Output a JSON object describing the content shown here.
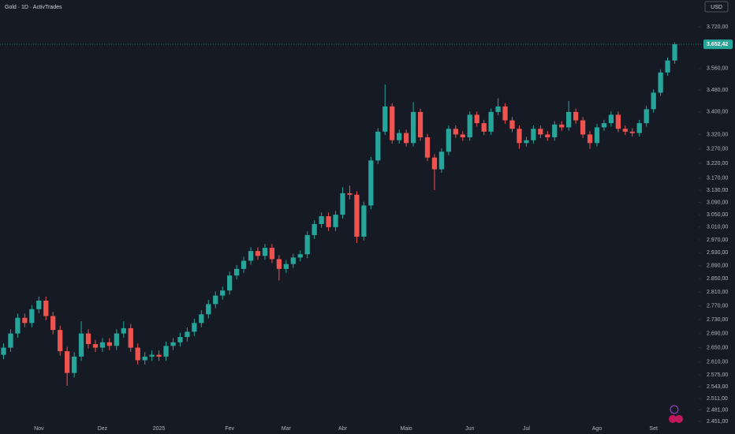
{
  "chart_data": {
    "type": "candlestick",
    "title": "Gold · 1D · ActivTrades",
    "currency": "USD",
    "categories": [
      null,
      null,
      null,
      null,
      null,
      "Nov",
      null,
      null,
      null,
      null,
      null,
      null,
      null,
      null,
      "Dez",
      null,
      null,
      null,
      null,
      null,
      null,
      null,
      "2025",
      null,
      null,
      null,
      null,
      null,
      null,
      null,
      null,
      null,
      "Fev",
      null,
      null,
      null,
      null,
      null,
      null,
      null,
      "Mar",
      null,
      null,
      null,
      null,
      null,
      null,
      null,
      "Abr",
      null,
      null,
      null,
      null,
      null,
      null,
      null,
      null,
      "Maio",
      null,
      null,
      null,
      null,
      null,
      null,
      null,
      null,
      "Jun",
      null,
      null,
      null,
      null,
      null,
      null,
      null,
      "Jul",
      null,
      null,
      null,
      null,
      null,
      null,
      null,
      null,
      null,
      "Ago",
      null,
      null,
      null,
      null,
      null,
      null,
      null,
      "Set",
      null,
      null,
      null
    ],
    "open": [
      2630,
      2650,
      2690,
      2735,
      2720,
      2760,
      2785,
      2740,
      2700,
      2640,
      2580,
      2625,
      2690,
      2660,
      2650,
      2665,
      2655,
      2690,
      2705,
      2650,
      2615,
      2625,
      2630,
      2625,
      2655,
      2665,
      2680,
      2695,
      2720,
      2745,
      2775,
      2800,
      2815,
      2860,
      2880,
      2905,
      2935,
      2920,
      2945,
      2910,
      2880,
      2895,
      2915,
      2925,
      2985,
      3020,
      3045,
      3010,
      3050,
      3120,
      3115,
      2980,
      3080,
      3230,
      3330,
      3420,
      3300,
      3325,
      3290,
      3400,
      3310,
      3240,
      3200,
      3260,
      3340,
      3320,
      3310,
      3390,
      3360,
      3330,
      3400,
      3420,
      3370,
      3340,
      3290,
      3300,
      3340,
      3320,
      3310,
      3355,
      3345,
      3400,
      3370,
      3320,
      3290,
      3345,
      3360,
      3390,
      3340,
      3330,
      3325,
      3360,
      3410,
      3470,
      3545,
      3590
    ],
    "high": [
      2662,
      2702,
      2747,
      2747,
      2772,
      2797,
      2797,
      2752,
      2712,
      2652,
      2637,
      2725,
      2702,
      2672,
      2677,
      2677,
      2702,
      2725,
      2717,
      2662,
      2637,
      2642,
      2642,
      2667,
      2677,
      2692,
      2707,
      2732,
      2757,
      2787,
      2812,
      2827,
      2872,
      2892,
      2917,
      2947,
      2947,
      2957,
      2957,
      2922,
      2907,
      2927,
      2937,
      2997,
      3032,
      3057,
      3057,
      3062,
      3140,
      3145,
      3127,
      3092,
      3242,
      3342,
      3500,
      3432,
      3337,
      3337,
      3435,
      3412,
      3322,
      3252,
      3272,
      3352,
      3352,
      3332,
      3402,
      3402,
      3372,
      3412,
      3450,
      3432,
      3382,
      3352,
      3312,
      3352,
      3352,
      3332,
      3367,
      3367,
      3440,
      3412,
      3382,
      3332,
      3357,
      3372,
      3402,
      3402,
      3352,
      3342,
      3372,
      3422,
      3482,
      3557,
      3602,
      3660
    ],
    "low": [
      2618,
      2638,
      2678,
      2708,
      2708,
      2748,
      2728,
      2688,
      2628,
      2545,
      2568,
      2613,
      2648,
      2638,
      2638,
      2643,
      2643,
      2678,
      2638,
      2603,
      2603,
      2613,
      2613,
      2613,
      2643,
      2653,
      2668,
      2683,
      2708,
      2733,
      2763,
      2788,
      2803,
      2848,
      2868,
      2893,
      2908,
      2908,
      2898,
      2845,
      2868,
      2883,
      2903,
      2913,
      2973,
      3008,
      2998,
      2998,
      3038,
      3100,
      2960,
      2968,
      3068,
      3218,
      3318,
      3288,
      3288,
      3278,
      3278,
      3298,
      3228,
      3130,
      3188,
      3248,
      3308,
      3298,
      3298,
      3348,
      3318,
      3318,
      3388,
      3358,
      3328,
      3270,
      3278,
      3288,
      3308,
      3298,
      3298,
      3333,
      3333,
      3358,
      3308,
      3270,
      3278,
      3333,
      3348,
      3328,
      3318,
      3313,
      3313,
      3348,
      3398,
      3458,
      3533,
      3578
    ],
    "close": [
      2650,
      2690,
      2735,
      2720,
      2760,
      2785,
      2740,
      2700,
      2640,
      2580,
      2625,
      2690,
      2660,
      2650,
      2665,
      2655,
      2690,
      2705,
      2650,
      2615,
      2625,
      2630,
      2625,
      2655,
      2665,
      2680,
      2695,
      2720,
      2745,
      2775,
      2800,
      2815,
      2860,
      2880,
      2905,
      2935,
      2920,
      2945,
      2910,
      2880,
      2895,
      2915,
      2925,
      2985,
      3020,
      3045,
      3010,
      3050,
      3120,
      3115,
      2980,
      3080,
      3230,
      3330,
      3420,
      3300,
      3325,
      3290,
      3400,
      3310,
      3240,
      3200,
      3260,
      3340,
      3320,
      3310,
      3390,
      3360,
      3330,
      3400,
      3420,
      3370,
      3340,
      3290,
      3300,
      3340,
      3320,
      3310,
      3355,
      3345,
      3400,
      3370,
      3320,
      3290,
      3345,
      3360,
      3390,
      3340,
      3330,
      3325,
      3360,
      3410,
      3470,
      3545,
      3590,
      3652.42
    ],
    "up_color": "#26a69a",
    "down_color": "#ef5350",
    "last_price": {
      "value": 3652.42,
      "label": "3.652,42"
    },
    "log_scale": true,
    "ylim": [
      2439,
      3764
    ],
    "yticks": [
      {
        "value": 3720,
        "label": "3.720,00"
      },
      {
        "value": 3560,
        "label": "3.560,00"
      },
      {
        "value": 3480,
        "label": "3.480,00"
      },
      {
        "value": 3400,
        "label": "3.400,00"
      },
      {
        "value": 3320,
        "label": "3.320,00"
      },
      {
        "value": 3270,
        "label": "3.270,00"
      },
      {
        "value": 3220,
        "label": "3.220,00"
      },
      {
        "value": 3170,
        "label": "3.170,00"
      },
      {
        "value": 3130,
        "label": "3.130,00"
      },
      {
        "value": 3090,
        "label": "3.090,00"
      },
      {
        "value": 3050,
        "label": "3.050,00"
      },
      {
        "value": 3010,
        "label": "3.010,00"
      },
      {
        "value": 2970,
        "label": "2.970,00"
      },
      {
        "value": 2930,
        "label": "2.930,00"
      },
      {
        "value": 2890,
        "label": "2.890,00"
      },
      {
        "value": 2850,
        "label": "2.850,00"
      },
      {
        "value": 2810,
        "label": "2.810,00"
      },
      {
        "value": 2770,
        "label": "2.770,00"
      },
      {
        "value": 2730,
        "label": "2.730,00"
      },
      {
        "value": 2690,
        "label": "2.690,00"
      },
      {
        "value": 2650,
        "label": "2.650,00"
      },
      {
        "value": 2610,
        "label": "2.610,00"
      },
      {
        "value": 2575,
        "label": "2.575,00"
      },
      {
        "value": 2543,
        "label": "2.543,00"
      },
      {
        "value": 2511,
        "label": "2.511,00"
      },
      {
        "value": 2481,
        "label": "2.481,00"
      },
      {
        "value": 2451,
        "label": "2.451,00"
      }
    ],
    "grid": false
  }
}
